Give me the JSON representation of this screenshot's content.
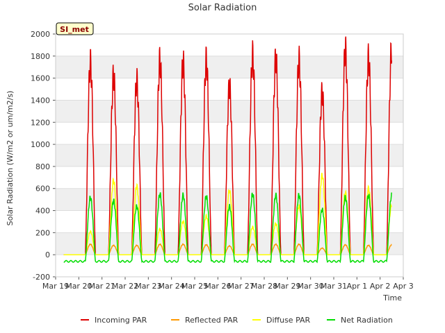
{
  "chart_data": {
    "type": "line",
    "title": "Solar Radiation",
    "xlabel": "Time",
    "ylabel": "Solar Radiation (W/m2 or um/m2/s)",
    "ylim": [
      -200,
      2000
    ],
    "yticks": [
      -200,
      0,
      200,
      400,
      600,
      800,
      1000,
      1200,
      1400,
      1600,
      1800,
      2000
    ],
    "xlim": [
      0,
      15
    ],
    "xticks": [
      {
        "x": 0,
        "label": "Mar 19"
      },
      {
        "x": 1,
        "label": "Mar 20"
      },
      {
        "x": 2,
        "label": "Mar 21"
      },
      {
        "x": 3,
        "label": "Mar 22"
      },
      {
        "x": 4,
        "label": "Mar 23"
      },
      {
        "x": 5,
        "label": "Mar 24"
      },
      {
        "x": 6,
        "label": "Mar 25"
      },
      {
        "x": 7,
        "label": "Mar 26"
      },
      {
        "x": 8,
        "label": "Mar 27"
      },
      {
        "x": 9,
        "label": "Mar 28"
      },
      {
        "x": 10,
        "label": "Mar 29"
      },
      {
        "x": 11,
        "label": "Mar 30"
      },
      {
        "x": 12,
        "label": "Mar 31"
      },
      {
        "x": 13,
        "label": "Apr 1"
      },
      {
        "x": 14,
        "label": "Apr 2"
      },
      {
        "x": 15,
        "label": "Apr 3"
      }
    ],
    "grid_bands": true,
    "site_label": "SI_met",
    "legend_position": "bottom",
    "daily_peaks": {
      "days": [
        "Mar 20",
        "Mar 21",
        "Mar 22",
        "Mar 23",
        "Mar 24",
        "Mar 25",
        "Mar 26",
        "Mar 27",
        "Mar 28",
        "Mar 29",
        "Mar 30",
        "Mar 31",
        "Apr 1",
        "Apr 2"
      ],
      "series": [
        {
          "name": "Incoming PAR",
          "color": "#dd0000",
          "values": [
            1740,
            1620,
            1580,
            1760,
            1740,
            1760,
            1530,
            1800,
            1780,
            1760,
            1470,
            1860,
            1780,
            1880
          ]
        },
        {
          "name": "Reflected PAR",
          "color": "#ff9900",
          "values": [
            95,
            85,
            85,
            95,
            95,
            90,
            80,
            95,
            95,
            95,
            60,
            90,
            85,
            90
          ]
        },
        {
          "name": "Diffuse PAR",
          "color": "#ffff00",
          "values": [
            210,
            670,
            620,
            230,
            300,
            350,
            580,
            250,
            280,
            440,
            720,
            560,
            600,
            450
          ]
        },
        {
          "name": "Net Radiation",
          "color": "#00dd00",
          "values": [
            520,
            490,
            440,
            550,
            540,
            530,
            440,
            550,
            540,
            540,
            410,
            520,
            540,
            540
          ]
        }
      ],
      "night_values": {
        "Incoming PAR": 0,
        "Reflected PAR": 0,
        "Diffuse PAR": 0,
        "Net Radiation": -60
      }
    }
  }
}
